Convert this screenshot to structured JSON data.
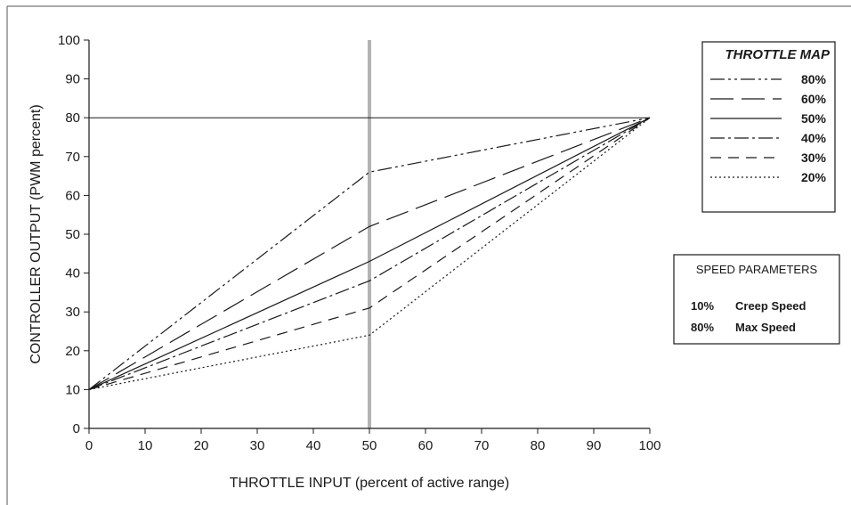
{
  "chart_data": {
    "type": "line",
    "title": "",
    "xlabel": "THROTTLE INPUT  (percent of active range)",
    "ylabel": "CONTROLLER OUTPUT  (PWM percent)",
    "xlim": [
      0,
      100
    ],
    "ylim": [
      0,
      100
    ],
    "x_ticks": [
      "0",
      "10",
      "20",
      "30",
      "40",
      "50",
      "60",
      "70",
      "80",
      "90",
      "100"
    ],
    "y_ticks": [
      "0",
      "10",
      "20",
      "30",
      "40",
      "50",
      "60",
      "70",
      "80",
      "90",
      "100"
    ],
    "grid": false,
    "reference_lines": {
      "horizontal_y": 80,
      "vertical_x": 50
    },
    "legend": {
      "title": "THROTTLE MAP",
      "placement": "right"
    },
    "series": [
      {
        "name": "80%",
        "dash": "dash-dot-dot",
        "x": [
          0,
          50,
          100
        ],
        "y": [
          10,
          66,
          80
        ]
      },
      {
        "name": "60%",
        "dash": "long-dash",
        "x": [
          0,
          50,
          100
        ],
        "y": [
          10,
          52,
          80
        ]
      },
      {
        "name": "50%",
        "dash": "solid",
        "x": [
          0,
          50,
          100
        ],
        "y": [
          10,
          43,
          80
        ]
      },
      {
        "name": "40%",
        "dash": "dash-dot",
        "x": [
          0,
          50,
          100
        ],
        "y": [
          10,
          38,
          80
        ]
      },
      {
        "name": "30%",
        "dash": "dash",
        "x": [
          0,
          50,
          100
        ],
        "y": [
          10,
          31,
          80
        ]
      },
      {
        "name": "20%",
        "dash": "dot",
        "x": [
          0,
          50,
          100
        ],
        "y": [
          10,
          24,
          80
        ]
      }
    ],
    "speed_parameters": {
      "title": "SPEED PARAMETERS",
      "rows": [
        {
          "value": "10%",
          "label": "Creep Speed"
        },
        {
          "value": "80%",
          "label": "Max Speed"
        }
      ]
    },
    "colors": {
      "line": "#1a1a1a",
      "reference_vertical": "#b3b3b3"
    }
  }
}
